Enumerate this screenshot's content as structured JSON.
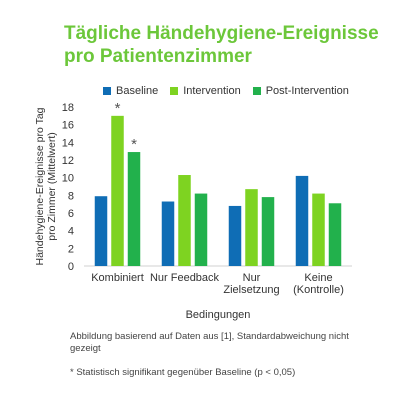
{
  "title_line1": "Tägliche Händehygiene-Ereignisse",
  "title_line2": "pro Patientenzimmer",
  "footnote_source": "Abbildung basierend auf Daten aus [1], Standardabweichung nicht gezeigt",
  "footnote_significance": "* Statistisch signifikant gegenüber Baseline (p < 0,05)",
  "chart_data": {
    "type": "bar",
    "title": "Tägliche Händehygiene-Ereignisse pro Patientenzimmer",
    "xlabel": "Bedingungen",
    "ylabel": "Händehygiene-Ereignisse pro Tag pro Zimmer (Mittelwert)",
    "ylim": [
      0,
      18
    ],
    "yticks": [
      0,
      2,
      4,
      6,
      8,
      10,
      12,
      14,
      16,
      18
    ],
    "grid": false,
    "legend_position": "top",
    "categories": [
      [
        "Kombiniert"
      ],
      [
        "Nur Feedback"
      ],
      [
        "Nur",
        "Zielsetzung"
      ],
      [
        "Keine",
        "(Kontrolle)"
      ]
    ],
    "series": [
      {
        "name": "Baseline",
        "color": "#0f6db5",
        "values": [
          7.9,
          7.3,
          6.8,
          10.2
        ]
      },
      {
        "name": "Intervention",
        "color": "#7ed321",
        "values": [
          17.0,
          10.3,
          8.7,
          8.2
        ]
      },
      {
        "name": "Post-Intervention",
        "color": "#22b14c",
        "values": [
          12.9,
          8.2,
          7.8,
          7.1
        ]
      }
    ],
    "annotations": [
      {
        "text": "*",
        "series": 1,
        "category": 0
      },
      {
        "text": "*",
        "series": 2,
        "category": 0
      }
    ]
  }
}
